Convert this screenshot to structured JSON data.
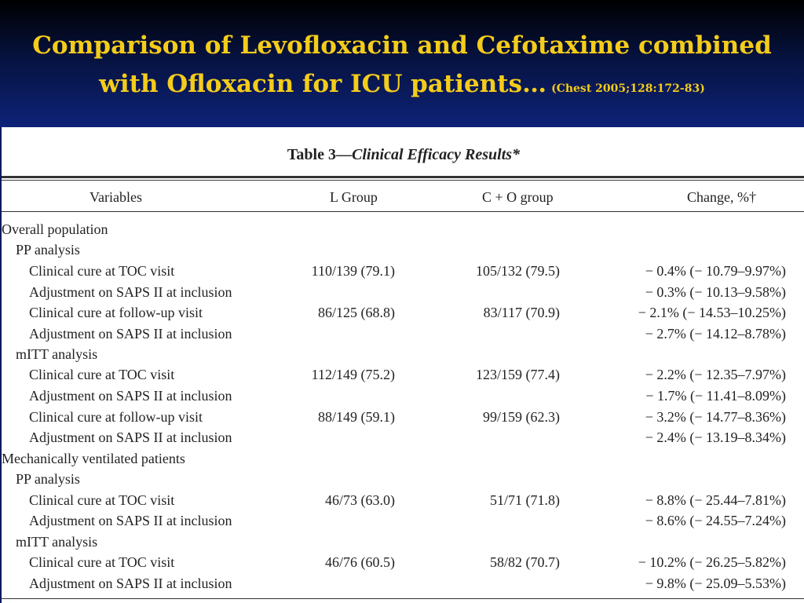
{
  "slide": {
    "title_line1": "Comparison of Levofloxacin and Cefotaxime combined",
    "title_line2": "with Ofloxacin for ICU patients…",
    "citation": "(Chest 2005;128:172-83)"
  },
  "table": {
    "label": "Table 3—",
    "caption": "Clinical Efficacy Results*",
    "columns": {
      "variables": "Variables",
      "l_group": "L Group",
      "co_group": "C + O group",
      "change": "Change, %†"
    },
    "rows": [
      {
        "level": 0,
        "variable": "Overall population",
        "l": "",
        "co": "",
        "change": ""
      },
      {
        "level": 1,
        "variable": "PP analysis",
        "l": "",
        "co": "",
        "change": ""
      },
      {
        "level": 2,
        "variable": "Clinical cure at TOC visit",
        "l": "110/139 (79.1)",
        "co": "105/132 (79.5)",
        "change": "− 0.4% (− 10.79–9.97%)"
      },
      {
        "level": 2,
        "variable": "Adjustment on SAPS II at inclusion",
        "l": "",
        "co": "",
        "change": "− 0.3% (− 10.13–9.58%)"
      },
      {
        "level": 2,
        "variable": "Clinical cure at follow-up visit",
        "l": "86/125 (68.8)",
        "co": "83/117 (70.9)",
        "change": "− 2.1% (− 14.53–10.25%)"
      },
      {
        "level": 2,
        "variable": "Adjustment on SAPS II at inclusion",
        "l": "",
        "co": "",
        "change": "− 2.7% (− 14.12–8.78%)"
      },
      {
        "level": 1,
        "variable": "mITT analysis",
        "l": "",
        "co": "",
        "change": ""
      },
      {
        "level": 2,
        "variable": "Clinical cure at TOC visit",
        "l": "112/149 (75.2)",
        "co": "123/159 (77.4)",
        "change": "− 2.2% (− 12.35–7.97%)"
      },
      {
        "level": 2,
        "variable": "Adjustment on SAPS II at inclusion",
        "l": "",
        "co": "",
        "change": "− 1.7% (− 11.41–8.09%)"
      },
      {
        "level": 2,
        "variable": "Clinical cure at follow-up visit",
        "l": "88/149 (59.1)",
        "co": "99/159 (62.3)",
        "change": "− 3.2% (− 14.77–8.36%)"
      },
      {
        "level": 2,
        "variable": "Adjustment on SAPS II at inclusion",
        "l": "",
        "co": "",
        "change": "− 2.4% (− 13.19–8.34%)"
      },
      {
        "level": 0,
        "variable": "Mechanically ventilated patients",
        "l": "",
        "co": "",
        "change": ""
      },
      {
        "level": 1,
        "variable": "PP analysis",
        "l": "",
        "co": "",
        "change": ""
      },
      {
        "level": 2,
        "variable": "Clinical cure at TOC visit",
        "l": "46/73 (63.0)",
        "co": "51/71 (71.8)",
        "change": "− 8.8% (− 25.44–7.81%)"
      },
      {
        "level": 2,
        "variable": "Adjustment on SAPS II at inclusion",
        "l": "",
        "co": "",
        "change": "− 8.6% (− 24.55–7.24%)"
      },
      {
        "level": 1,
        "variable": "mITT analysis",
        "l": "",
        "co": "",
        "change": ""
      },
      {
        "level": 2,
        "variable": "Clinical cure at TOC visit",
        "l": "46/76 (60.5)",
        "co": "58/82 (70.7)",
        "change": "− 10.2% (− 26.25–5.82%)"
      },
      {
        "level": 2,
        "variable": "Adjustment on SAPS II at inclusion",
        "l": "",
        "co": "",
        "change": "− 9.8% (− 25.09–5.53%)"
      }
    ]
  },
  "colors": {
    "background": "#0a1a5e",
    "title": "#f4cc1a",
    "table_background": "#ffffff",
    "table_text": "#222222"
  }
}
